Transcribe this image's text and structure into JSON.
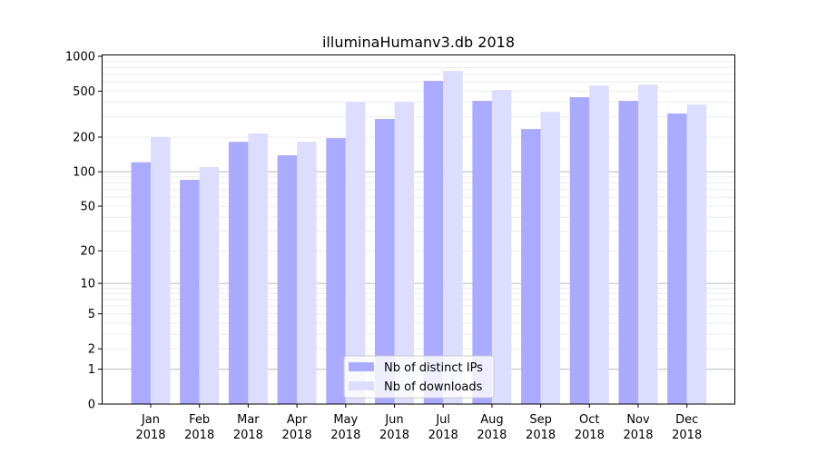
{
  "chart_data": {
    "type": "bar",
    "title": "illuminaHumanv3.db 2018",
    "scale": "log10(1+y)",
    "ylim": [
      0,
      1000
    ],
    "yticks": [
      0,
      1,
      2,
      5,
      10,
      20,
      50,
      100,
      200,
      500,
      1000
    ],
    "ytick_labels": [
      "0",
      "1",
      "2",
      "5",
      "10",
      "20",
      "50",
      "100",
      "200",
      "500",
      "1000"
    ],
    "categories": [
      "Jan\n2018",
      "Feb\n2018",
      "Mar\n2018",
      "Apr\n2018",
      "May\n2018",
      "Jun\n2018",
      "Jul\n2018",
      "Aug\n2018",
      "Sep\n2018",
      "Oct\n2018",
      "Nov\n2018",
      "Dec\n2018"
    ],
    "series": [
      {
        "name": "Nb of distinct IPs",
        "color": "#aaaaff",
        "values": [
          121,
          85,
          182,
          139,
          196,
          287,
          613,
          412,
          235,
          443,
          412,
          320
        ]
      },
      {
        "name": "Nb of downloads",
        "color": "#ddddff",
        "values": [
          200,
          110,
          215,
          182,
          404,
          404,
          747,
          511,
          331,
          560,
          570,
          383
        ]
      }
    ],
    "legend": "bottom-center",
    "grid": true
  }
}
